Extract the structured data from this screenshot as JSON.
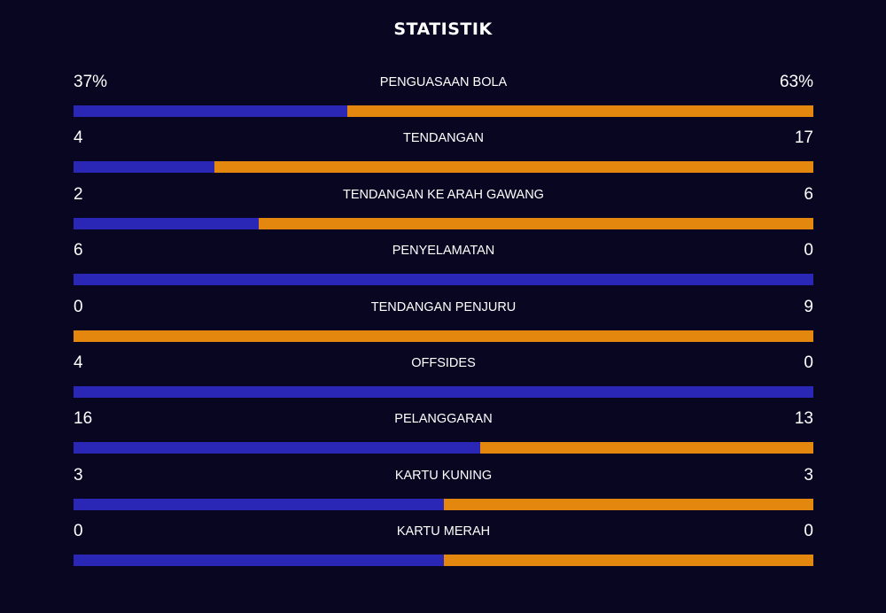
{
  "title": "STATISTIK",
  "colors": {
    "background": "#090622",
    "home": "#2a26b6",
    "away": "#e3870f"
  },
  "stats": [
    {
      "label": "PENGUASAAN BOLA",
      "home": "37%",
      "away": "63%",
      "home_share": 0.37
    },
    {
      "label": "TENDANGAN",
      "home": "4",
      "away": "17",
      "home_share": 0.19
    },
    {
      "label": "TENDANGAN KE ARAH GAWANG",
      "home": "2",
      "away": "6",
      "home_share": 0.25
    },
    {
      "label": "PENYELAMATAN",
      "home": "6",
      "away": "0",
      "home_share": 1.0
    },
    {
      "label": "TENDANGAN PENJURU",
      "home": "0",
      "away": "9",
      "home_share": 0.0
    },
    {
      "label": "OFFSIDES",
      "home": "4",
      "away": "0",
      "home_share": 1.0
    },
    {
      "label": "PELANGGARAN",
      "home": "16",
      "away": "13",
      "home_share": 0.55
    },
    {
      "label": "KARTU KUNING",
      "home": "3",
      "away": "3",
      "home_share": 0.5
    },
    {
      "label": "KARTU MERAH",
      "home": "0",
      "away": "0",
      "home_share": 0.5
    }
  ]
}
